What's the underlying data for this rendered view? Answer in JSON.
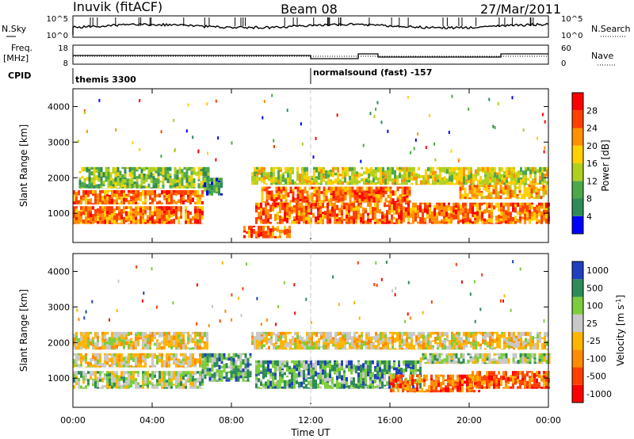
{
  "header": {
    "title_left": "Inuvik (fitACF)",
    "title_center": "Beam 08",
    "title_right": "27/Mar/2011"
  },
  "noise_panel": {
    "left_label": "N.Sky",
    "right_label": "N.Search",
    "left_ticks": [
      "10^5",
      "10^0"
    ],
    "right_ticks": [
      "10^5",
      "10^0"
    ]
  },
  "freq_panel": {
    "left_label_line1": "Freq.",
    "left_label_line2": "[MHz]",
    "right_label": "Nave",
    "left_ticks": [
      "18",
      "8"
    ],
    "right_ticks": [
      "60",
      "0"
    ]
  },
  "cpid": {
    "label": "CPID",
    "segments": [
      {
        "text": "themis 3300",
        "start_hour": 0
      },
      {
        "text": "normalsound (fast) -157",
        "start_hour": 12
      }
    ]
  },
  "colors": {
    "power_scale": [
      "#0000ff",
      "#2e8b57",
      "#4ea84a",
      "#b0d020",
      "#ffd000",
      "#ff9000",
      "#ff4000",
      "#ff0000"
    ],
    "velocity_scale": [
      "#ff0000",
      "#ff4000",
      "#ff8c00",
      "#ffb400",
      "#c8c8c8",
      "#7ccd3c",
      "#2e8b57",
      "#2040c0"
    ],
    "cpid_change_line": "#c8c8c8"
  },
  "chart_data": [
    {
      "type": "heatmap",
      "title": "Power",
      "xlabel": "Time UT",
      "ylabel": "Slant Range [km]",
      "x_ticks": [
        "00:00",
        "04:00",
        "08:00",
        "12:00",
        "16:00",
        "20:00",
        "00:00"
      ],
      "x_range_hours": [
        0,
        24
      ],
      "ylim": [
        180,
        4500
      ],
      "y_ticks": [
        1000,
        2000,
        3000,
        4000
      ],
      "colorbar": {
        "label": "Power [dB]",
        "ticks": [
          "28",
          "24",
          "20",
          "16",
          "12",
          "8",
          "4"
        ],
        "range": [
          0,
          32
        ]
      },
      "bands": [
        {
          "t_start": 0.0,
          "t_end": 6.6,
          "range_km": [
            700,
            1200
          ],
          "value_db": 28
        },
        {
          "t_start": 0.0,
          "t_end": 6.5,
          "range_km": [
            1250,
            1650
          ],
          "value_db": 26
        },
        {
          "t_start": 0.3,
          "t_end": 6.8,
          "range_km": [
            1700,
            2300
          ],
          "value_db": 14
        },
        {
          "t_start": 6.6,
          "t_end": 7.5,
          "range_km": [
            1500,
            2000
          ],
          "value_db": 8
        },
        {
          "t_start": 8.6,
          "t_end": 11.0,
          "range_km": [
            300,
            650
          ],
          "value_db": 26
        },
        {
          "t_start": 9.2,
          "t_end": 24.0,
          "range_km": [
            700,
            1300
          ],
          "value_db": 28
        },
        {
          "t_start": 9.5,
          "t_end": 17.0,
          "range_km": [
            1300,
            1750
          ],
          "value_db": 26
        },
        {
          "t_start": 9.0,
          "t_end": 24.0,
          "range_km": [
            1800,
            2300
          ],
          "value_db": 16
        },
        {
          "t_start": 19.5,
          "t_end": 24.0,
          "range_km": [
            1400,
            1800
          ],
          "value_db": 24
        }
      ]
    },
    {
      "type": "heatmap",
      "title": "Velocity",
      "xlabel": "Time UT",
      "ylabel": "Slant Range [km]",
      "x_ticks": [
        "00:00",
        "04:00",
        "08:00",
        "12:00",
        "16:00",
        "20:00",
        "00:00"
      ],
      "x_range_hours": [
        0,
        24
      ],
      "ylim": [
        180,
        4500
      ],
      "y_ticks": [
        1000,
        2000,
        3000,
        4000
      ],
      "colorbar": {
        "label": "Velocity [m s^-1]",
        "ticks": [
          "1000",
          "500",
          "100",
          "25",
          "-25",
          "-100",
          "-500",
          "-1000"
        ]
      },
      "bands": [
        {
          "t_start": 0.0,
          "t_end": 6.5,
          "range_km": [
            700,
            1200
          ],
          "value": 80
        },
        {
          "t_start": 0.0,
          "t_end": 6.5,
          "range_km": [
            1300,
            1700
          ],
          "value": 10
        },
        {
          "t_start": 0.0,
          "t_end": 6.8,
          "range_km": [
            1800,
            2300
          ],
          "value": -10
        },
        {
          "t_start": 6.5,
          "t_end": 9.0,
          "range_km": [
            900,
            1700
          ],
          "value": 150
        },
        {
          "t_start": 9.2,
          "t_end": 17.5,
          "range_km": [
            700,
            1500
          ],
          "value": 300
        },
        {
          "t_start": 16.0,
          "t_end": 20.5,
          "range_km": [
            600,
            1100
          ],
          "value": -200
        },
        {
          "t_start": 20.0,
          "t_end": 24.0,
          "range_km": [
            700,
            1200
          ],
          "value": -250
        },
        {
          "t_start": 9.0,
          "t_end": 24.0,
          "range_km": [
            1800,
            2300
          ],
          "value": 5
        },
        {
          "t_start": 17.5,
          "t_end": 24.0,
          "range_km": [
            1400,
            1700
          ],
          "value": 60
        }
      ]
    }
  ]
}
